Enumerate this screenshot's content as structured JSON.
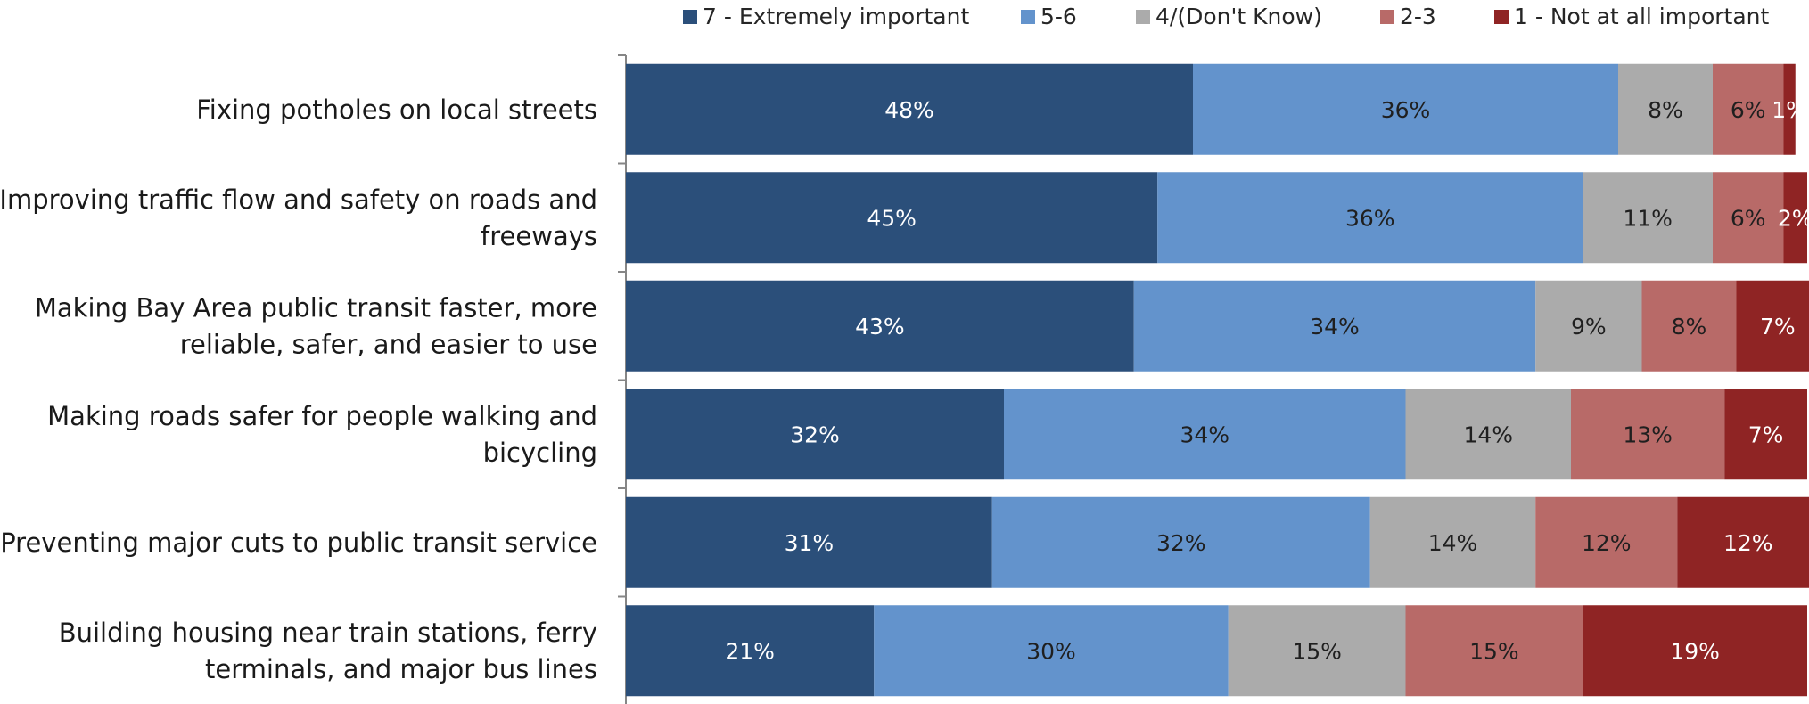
{
  "chart_data": {
    "type": "bar",
    "orientation": "horizontal",
    "stacked": true,
    "xlim": [
      0,
      100
    ],
    "legend_position": "top",
    "grid": false,
    "categories": [
      [
        "Fixing potholes on local streets"
      ],
      [
        "Improving traffic flow and safety on roads and",
        "freeways"
      ],
      [
        "Making Bay Area public transit faster, more",
        "reliable, safer, and easier to use"
      ],
      [
        "Making roads safer for people walking and",
        "bicycling"
      ],
      [
        "Preventing major cuts to public transit service"
      ],
      [
        "Building housing near train stations, ferry",
        "terminals, and major bus lines"
      ]
    ],
    "series": [
      {
        "name": "7 - Extremely important",
        "color": "#2B4F7A",
        "label_color": "#ffffff",
        "values": [
          48,
          45,
          43,
          32,
          31,
          21
        ]
      },
      {
        "name": "5-6",
        "color": "#6393CC",
        "label_color": "#1f1f1f",
        "values": [
          36,
          36,
          34,
          34,
          32,
          30
        ]
      },
      {
        "name": "4/(Don't Know)",
        "color": "#ABABAB",
        "label_color": "#1f1f1f",
        "values": [
          8,
          11,
          9,
          14,
          14,
          15
        ]
      },
      {
        "name": "2-3",
        "color": "#B86A68",
        "label_color": "#1f1f1f",
        "values": [
          6,
          6,
          8,
          13,
          12,
          15
        ]
      },
      {
        "name": "1 - Not at all important",
        "color": "#8F2424",
        "label_color": "#ffffff",
        "values": [
          1,
          2,
          7,
          7,
          12,
          19
        ]
      }
    ],
    "value_suffix": "%"
  }
}
